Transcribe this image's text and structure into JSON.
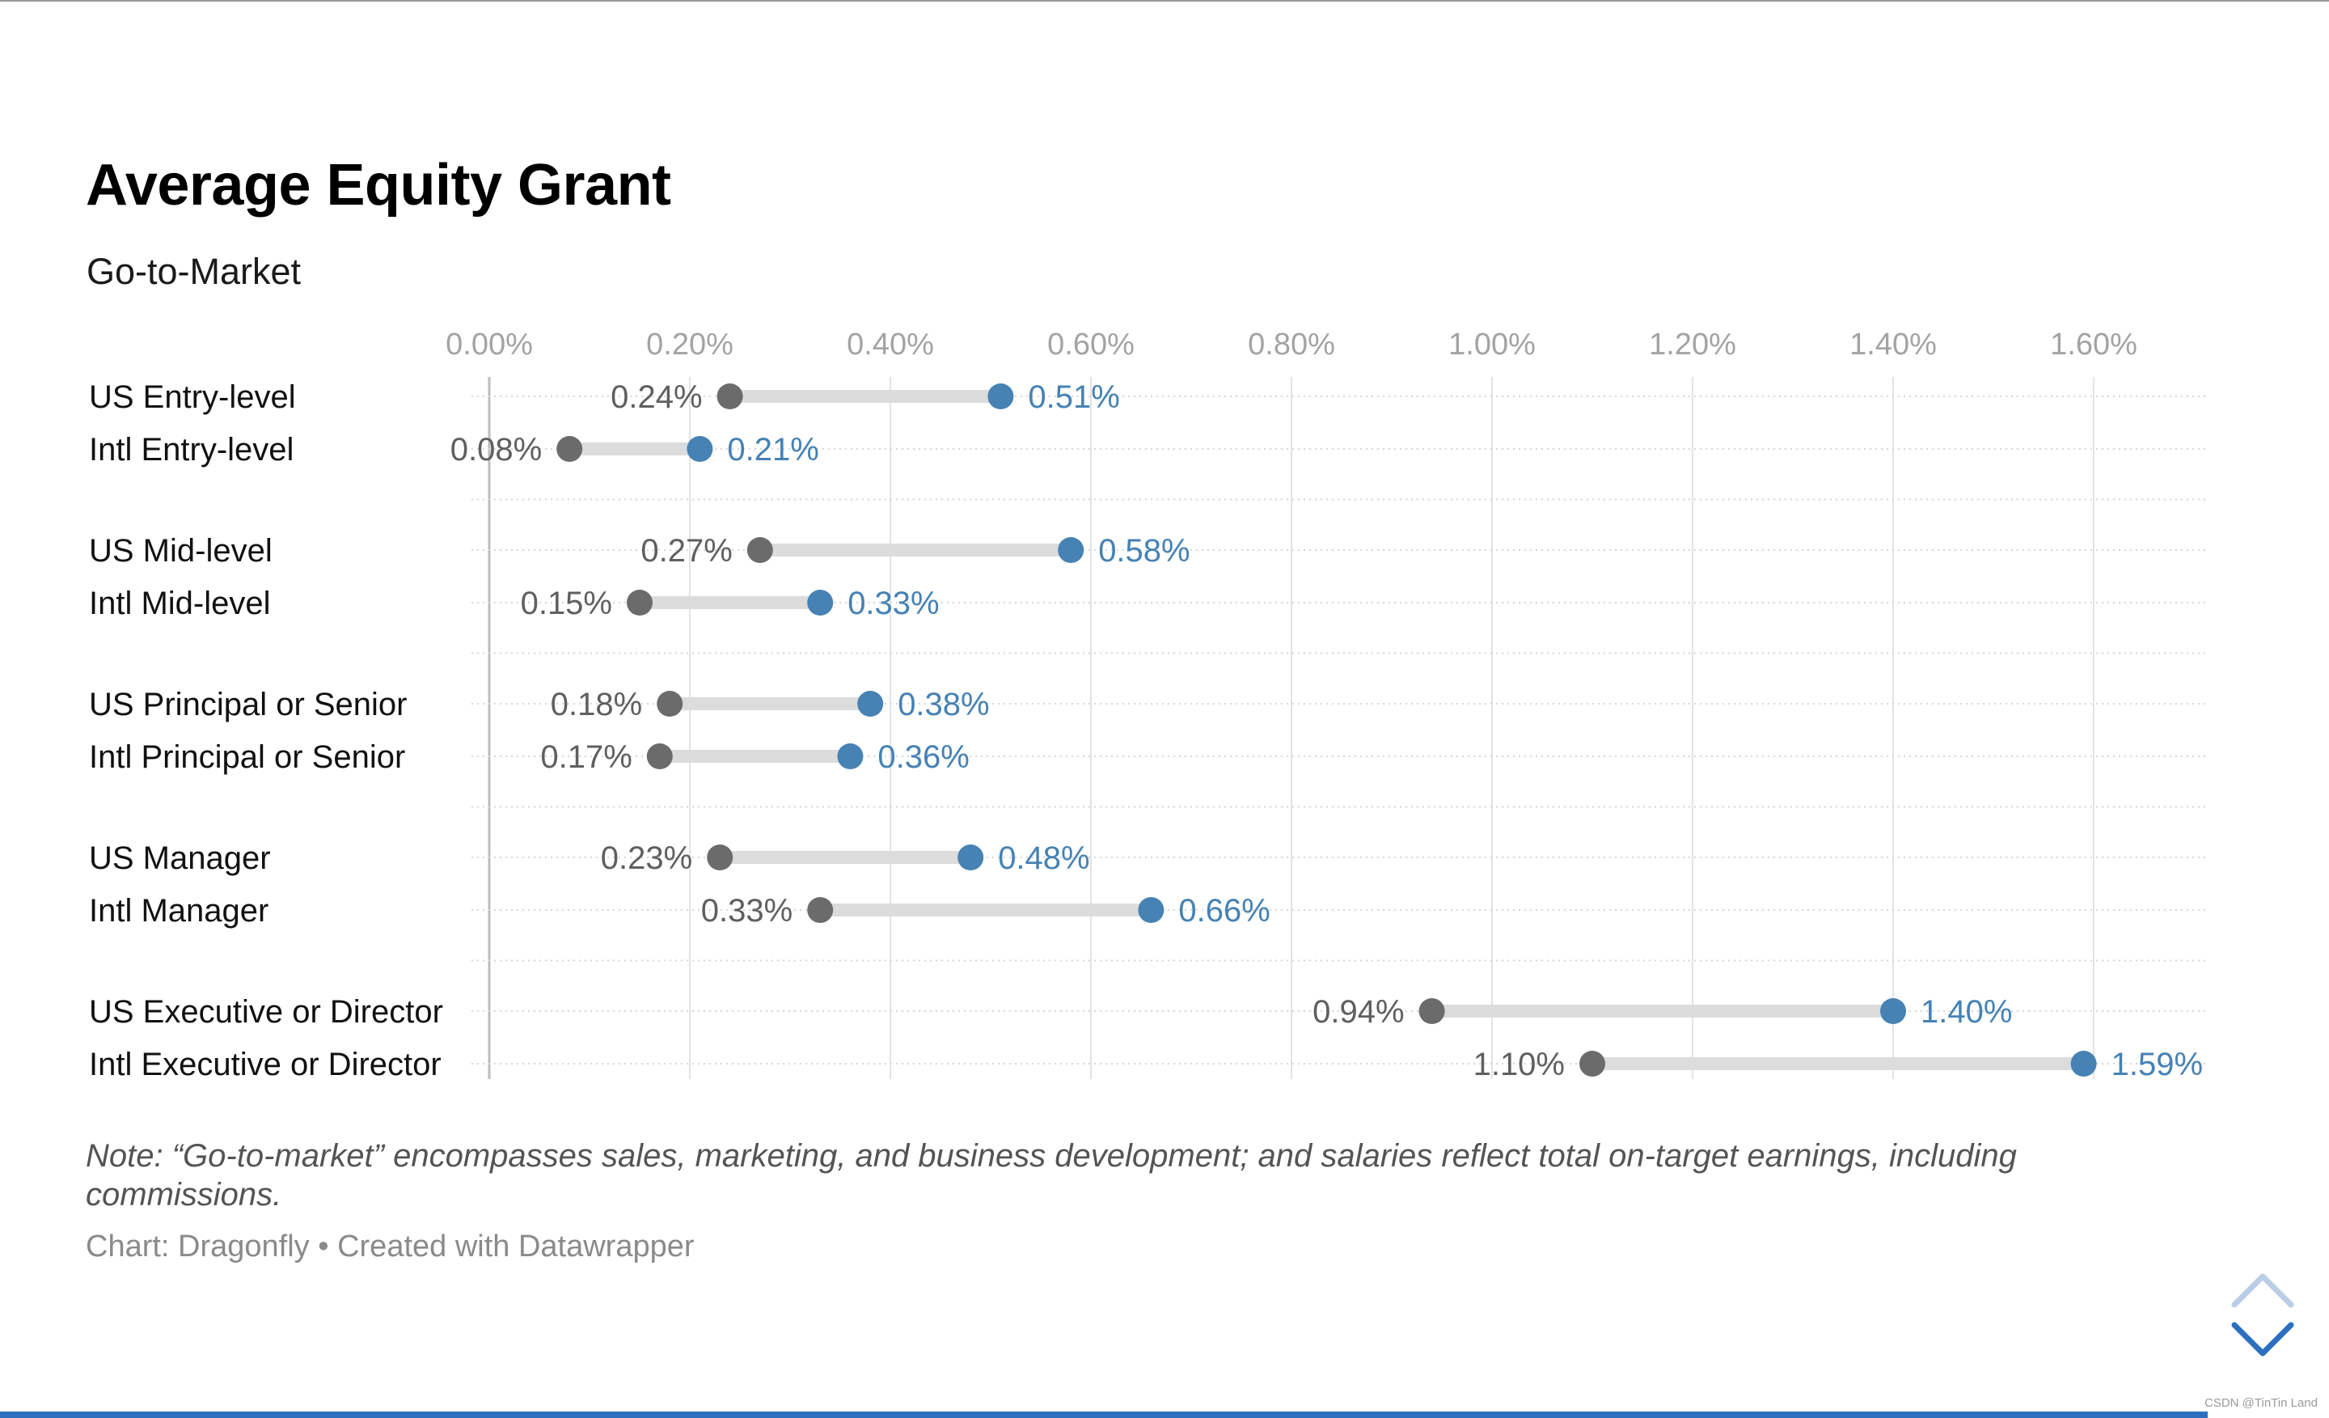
{
  "chart_data": {
    "type": "dot-range",
    "title": "Average Equity Grant",
    "subtitle": "Go-to-Market",
    "x_axis": {
      "min": 0,
      "max": 1.6,
      "ticks": [
        0,
        0.2,
        0.4,
        0.6,
        0.8,
        1.0,
        1.2,
        1.4,
        1.6
      ],
      "tick_labels": [
        "0.00%",
        "0.20%",
        "0.40%",
        "0.60%",
        "0.80%",
        "1.00%",
        "1.20%",
        "1.40%",
        "1.60%"
      ],
      "unit": "%",
      "position": "top",
      "grid": true
    },
    "series_colors": {
      "low": "#6b6b6b",
      "high": "#4682b4"
    },
    "groups": [
      {
        "rows": [
          {
            "label": "US Entry-level",
            "low": 0.24,
            "high": 0.51,
            "low_label": "0.24%",
            "high_label": "0.51%"
          },
          {
            "label": "Intl Entry-level",
            "low": 0.08,
            "high": 0.21,
            "low_label": "0.08%",
            "high_label": "0.21%"
          }
        ]
      },
      {
        "rows": [
          {
            "label": "US Mid-level",
            "low": 0.27,
            "high": 0.58,
            "low_label": "0.27%",
            "high_label": "0.58%"
          },
          {
            "label": "Intl Mid-level",
            "low": 0.15,
            "high": 0.33,
            "low_label": "0.15%",
            "high_label": "0.33%"
          }
        ]
      },
      {
        "rows": [
          {
            "label": "US Principal or Senior",
            "low": 0.18,
            "high": 0.38,
            "low_label": "0.18%",
            "high_label": "0.38%"
          },
          {
            "label": "Intl Principal or Senior",
            "low": 0.17,
            "high": 0.36,
            "low_label": "0.17%",
            "high_label": "0.36%"
          }
        ]
      },
      {
        "rows": [
          {
            "label": "US Manager",
            "low": 0.23,
            "high": 0.48,
            "low_label": "0.23%",
            "high_label": "0.48%"
          },
          {
            "label": "Intl Manager",
            "low": 0.33,
            "high": 0.66,
            "low_label": "0.33%",
            "high_label": "0.66%"
          }
        ]
      },
      {
        "rows": [
          {
            "label": "US Executive or Director",
            "low": 0.94,
            "high": 1.4,
            "low_label": "0.94%",
            "high_label": "1.40%"
          },
          {
            "label": "Intl Executive or Director",
            "low": 1.1,
            "high": 1.59,
            "low_label": "1.10%",
            "high_label": "1.59%"
          }
        ]
      }
    ],
    "note": "Note: “Go-to-market” encompasses sales, marketing, and business development; and salaries reflect total on-target earnings, including commissions.",
    "credit": "Chart: Dragonfly • Created with Datawrapper"
  },
  "watermark": "CSDN @TinTin Land",
  "controls": {
    "scroll_up_icon": "chevron-up-icon",
    "scroll_down_icon": "chevron-down-icon"
  }
}
